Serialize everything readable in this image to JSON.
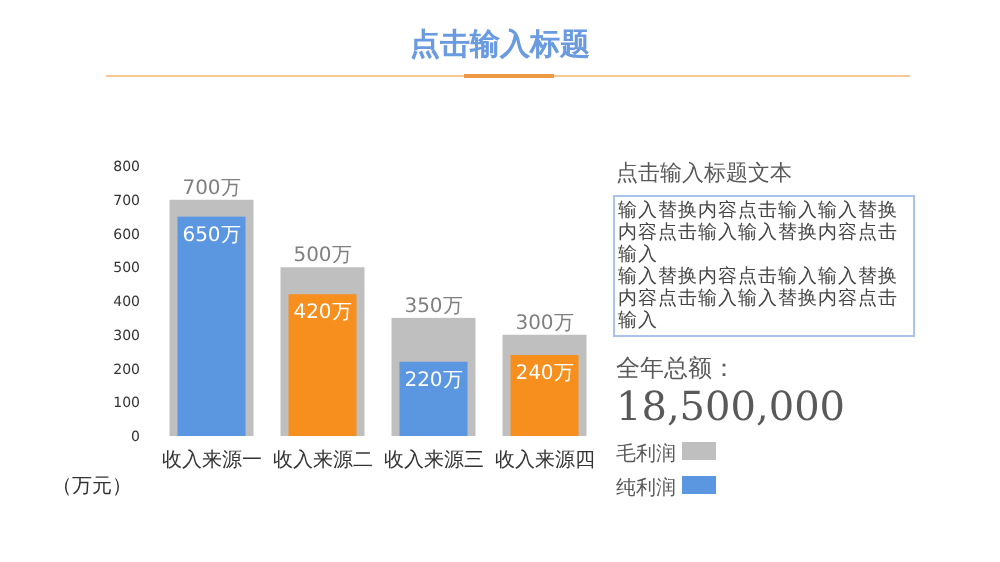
{
  "chart_data": {
    "type": "bar",
    "title": "点击输入标题",
    "ylabel": "（万元）",
    "categories": [
      "收入来源一",
      "收入来源二",
      "收入来源三",
      "收入来源四"
    ],
    "series": [
      {
        "name": "毛利润",
        "color": "#bfbfbf",
        "values": [
          700,
          500,
          350,
          300
        ],
        "value_labels": [
          "700万",
          "500万",
          "350万",
          "300万"
        ]
      },
      {
        "name": "纯利润",
        "color": "#5b96e0",
        "colors": [
          "#5b96e0",
          "#f78f1e",
          "#5b96e0",
          "#f78f1e"
        ],
        "values": [
          650,
          420,
          220,
          240
        ],
        "value_labels": [
          "650万",
          "420万",
          "220万",
          "240万"
        ]
      }
    ],
    "ylim": [
      0,
      800
    ],
    "yticks": [
      0,
      100,
      200,
      300,
      400,
      500,
      600,
      700,
      800
    ],
    "grid": false,
    "legend": "right",
    "annotations": [
      "点击输入标题文本",
      "输入替换内容点击输入输入替换内容点击输入输入替换内容点击输入",
      "输入替换内容点击输入输入替换内容点击输入输入替换内容点击输入",
      "全年总额：",
      "18,500,000"
    ]
  }
}
